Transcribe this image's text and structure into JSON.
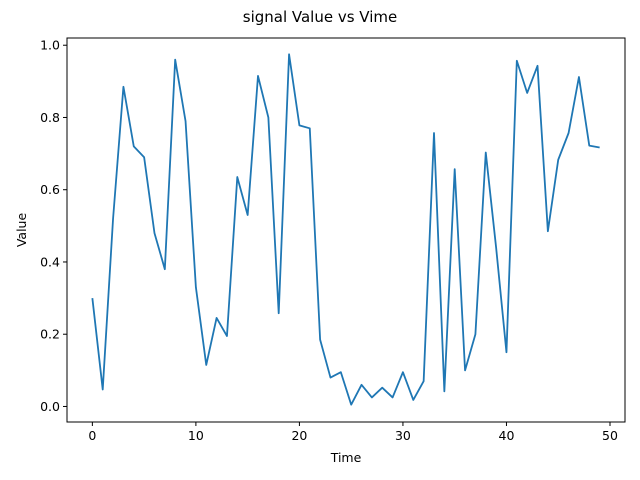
{
  "chart_data": {
    "type": "line",
    "title": "signal Value vs Vime",
    "xlabel": "Time",
    "ylabel": "Value",
    "xlim": [
      -2.45,
      51.45
    ],
    "ylim": [
      -0.043,
      1.02
    ],
    "xticks": [
      0,
      10,
      20,
      30,
      40,
      50
    ],
    "yticks": [
      0.0,
      0.2,
      0.4,
      0.6,
      0.8,
      1.0
    ],
    "xtick_labels": [
      "0",
      "10",
      "20",
      "30",
      "40",
      "50"
    ],
    "ytick_labels": [
      "0.0",
      "0.2",
      "0.4",
      "0.6",
      "0.8",
      "1.0"
    ],
    "grid": false,
    "series": [
      {
        "color": "#1f77b4",
        "x": [
          0,
          1,
          2,
          3,
          4,
          5,
          6,
          7,
          8,
          9,
          10,
          11,
          12,
          13,
          14,
          15,
          16,
          17,
          18,
          19,
          20,
          21,
          22,
          23,
          24,
          25,
          26,
          27,
          28,
          29,
          30,
          31,
          32,
          33,
          34,
          35,
          36,
          37,
          38,
          39,
          40,
          41,
          42,
          43,
          44,
          45,
          46,
          47,
          48,
          49
        ],
        "y": [
          0.3,
          0.047,
          0.52,
          0.885,
          0.72,
          0.69,
          0.48,
          0.38,
          0.96,
          0.79,
          0.33,
          0.115,
          0.245,
          0.195,
          0.635,
          0.53,
          0.915,
          0.8,
          0.258,
          0.975,
          0.778,
          0.77,
          0.185,
          0.08,
          0.095,
          0.005,
          0.06,
          0.025,
          0.052,
          0.025,
          0.095,
          0.018,
          0.07,
          0.757,
          0.042,
          0.657,
          0.1,
          0.2,
          0.703,
          0.44,
          0.15,
          0.957,
          0.868,
          0.943,
          0.485,
          0.683,
          0.757,
          0.912,
          0.722,
          0.717
        ]
      }
    ]
  }
}
